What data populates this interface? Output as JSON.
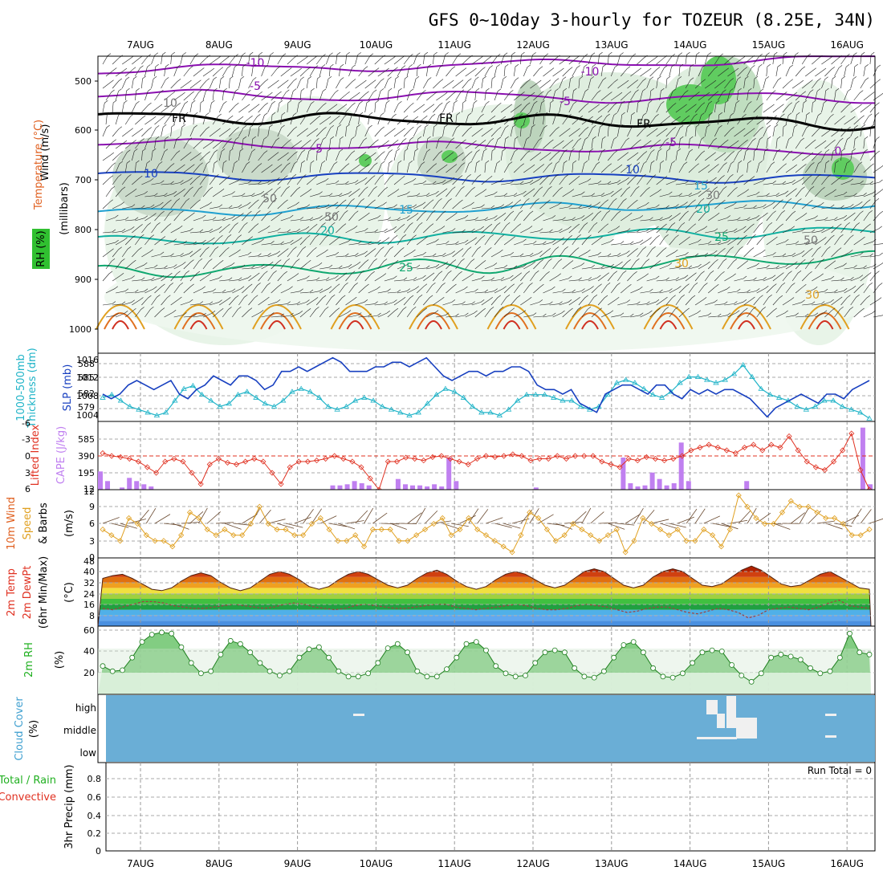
{
  "title": "GFS 0~10day 3-hourly for TOZEUR (8.25E, 34N)",
  "dates": [
    "7AUG",
    "8AUG",
    "9AUG",
    "10AUG",
    "11AUG",
    "12AUG",
    "13AUG",
    "14AUG",
    "15AUG",
    "16AUG"
  ],
  "colors": {
    "rh_green": "#3cc43c",
    "purple": "#8a10b0",
    "blue": "#1840c0",
    "cyan": "#20b4c8",
    "teal": "#10a880",
    "orange": "#e09020",
    "red": "#e03020",
    "cape": "#c080f0",
    "precip_green": "#20b020",
    "cloud": "#6aaed6"
  },
  "panels": {
    "upper": {
      "label_wind": "Wind (m/s)",
      "label_temp": "Temperature (°C)",
      "label_rh": "RH (%)",
      "label_pressure": "(millibars)",
      "label_pressure_chars": [
        "(",
        "m",
        "i",
        "l",
        "l",
        "i",
        "b",
        "a",
        "r",
        "s",
        ")"
      ],
      "yticks": [
        "500",
        "600",
        "700",
        "800",
        "900",
        "1000"
      ],
      "contour_labels": [
        "-10",
        "-10",
        "-5",
        "-5",
        "FR",
        "FR",
        "FR",
        "-5",
        "-5",
        "10",
        "10",
        "15",
        "15",
        "20",
        "20",
        "25",
        "25",
        "30",
        "30",
        "50",
        "50",
        "50",
        "30",
        "10",
        "0"
      ]
    },
    "slp": {
      "label_thick": "1000-500mb",
      "label_thick2": "Thickness (dm)",
      "label_slp": "SLP (mb)",
      "left_ticks": [
        "588",
        "585",
        "582",
        "579"
      ],
      "right_ticks": [
        "1016",
        "1012",
        "1008",
        "1004"
      ]
    },
    "cape": {
      "label_li": "Lifted Index",
      "label_cape": "CAPE (J/kg)",
      "left_ticks": [
        "-6",
        "-3",
        "0",
        "3",
        "6"
      ],
      "right_ticks": [
        "585",
        "390",
        "195",
        "12"
      ]
    },
    "wind10": {
      "label1": "10m Wind",
      "label2": "Speed",
      "label3": "& Barbs",
      "unit": "(m/s)",
      "ticks": [
        "12",
        "9",
        "6",
        "3",
        "0"
      ]
    },
    "temp": {
      "label1": "2m Temp",
      "label2": "2m DewPt",
      "label3": "(6hr Min/Max)",
      "unit": "(°C)",
      "ticks": [
        "48",
        "40",
        "32",
        "24",
        "16",
        "8"
      ]
    },
    "rh2m": {
      "label": "2m RH",
      "unit": "(%)",
      "ticks": [
        "60",
        "40",
        "20"
      ]
    },
    "cloud": {
      "label1": "Cloud Cover",
      "label2": "(%)",
      "levels": [
        "high",
        "middle",
        "low"
      ]
    },
    "precip": {
      "label1": "Total / Rain",
      "label2": "Convective",
      "label3": "3hr Precip (mm)",
      "ticks": [
        "0.8",
        "0.6",
        "0.4",
        "0.2",
        "0"
      ],
      "run_total": "Run Total = 0"
    }
  },
  "chart_data": [
    {
      "type": "line",
      "name": "sea level pressure",
      "unit": "mb",
      "x_step_hours": 3,
      "values": [
        1008,
        1007,
        1008,
        1010,
        1011,
        1010,
        1009,
        1010,
        1011,
        1008,
        1007,
        1009,
        1010,
        1012,
        1011,
        1010,
        1012,
        1012,
        1011,
        1009,
        1010,
        1013,
        1013,
        1014,
        1013,
        1014,
        1015,
        1016,
        1015,
        1013,
        1013,
        1013,
        1014,
        1014,
        1015,
        1015,
        1014,
        1015,
        1016,
        1014,
        1012,
        1011,
        1012,
        1013,
        1013,
        1012,
        1013,
        1013,
        1014,
        1014,
        1013,
        1010,
        1009,
        1009,
        1008,
        1009,
        1006,
        1005,
        1004,
        1008,
        1009,
        1010,
        1010,
        1009,
        1008,
        1010,
        1010,
        1008,
        1007,
        1009,
        1008,
        1009,
        1008,
        1009,
        1009,
        1008,
        1007,
        1005,
        1003,
        1005,
        1006,
        1007,
        1008,
        1007,
        1006,
        1008,
        1008,
        1007,
        1009,
        1010,
        1011
      ],
      "ylim": [
        1002,
        1017
      ]
    },
    {
      "type": "line",
      "name": "1000-500mb thickness",
      "unit": "dm",
      "x_step_hours": 3,
      "values": [
        581.5,
        582,
        581,
        580,
        579.5,
        579,
        578.5,
        579,
        581,
        583,
        583.5,
        582,
        581,
        580,
        580.5,
        582,
        582.5,
        581.5,
        580.5,
        580,
        581,
        582.5,
        583,
        582.5,
        581.5,
        580,
        579.5,
        580,
        581,
        581.5,
        581,
        580,
        579.5,
        579,
        578.5,
        579,
        580.5,
        582,
        583,
        582.5,
        581.5,
        580,
        579,
        579,
        578.5,
        579.5,
        581,
        582,
        582,
        582,
        581.5,
        581,
        581,
        580,
        579.5,
        580,
        582,
        584,
        584.5,
        584,
        583,
        582,
        581.5,
        582.5,
        584,
        585,
        585,
        584.5,
        584,
        584.5,
        585.5,
        587,
        585,
        583,
        582,
        581.5,
        581,
        580,
        579.5,
        580,
        581,
        581,
        580,
        579.5,
        579,
        578
      ],
      "ylim": [
        577.5,
        589
      ]
    },
    {
      "type": "line",
      "name": "lifted index",
      "unit": "",
      "x_step_hours": 3,
      "values": [
        -0.5,
        0,
        0.2,
        0.5,
        1,
        2,
        3,
        1,
        0.5,
        1,
        3,
        5,
        1.5,
        0.5,
        1.2,
        1.5,
        1,
        0.5,
        1,
        3,
        5,
        2,
        1,
        1,
        0.8,
        0.5,
        0,
        0.5,
        1,
        2,
        4,
        6,
        1,
        1,
        0.3,
        0.5,
        0.8,
        0.2,
        0,
        0.5,
        1,
        1.5,
        0.5,
        0,
        0.2,
        0,
        -0.3,
        0,
        0.8,
        0.5,
        0.5,
        0,
        0.5,
        0,
        0,
        0,
        1,
        1.5,
        2,
        0.5,
        0.8,
        0.2,
        0.5,
        0.8,
        0.5,
        0,
        -1,
        -1.5,
        -2,
        -1.5,
        -1,
        -0.5,
        -1.5,
        -2,
        -1,
        -2,
        -1.5,
        -3.5,
        -1,
        1,
        2,
        2.5,
        1,
        -1,
        -4,
        2.5,
        6
      ]
    },
    {
      "type": "bar",
      "name": "CAPE",
      "unit": "J/kg",
      "x_step_hours": 3,
      "values": [
        170,
        80,
        0,
        20,
        110,
        80,
        50,
        30,
        0,
        0,
        0,
        0,
        0,
        0,
        0,
        0,
        0,
        0,
        0,
        0,
        0,
        0,
        0,
        0,
        0,
        0,
        0,
        0,
        0,
        0,
        0,
        0,
        40,
        40,
        50,
        80,
        60,
        40,
        0,
        0,
        0,
        100,
        50,
        40,
        40,
        30,
        50,
        30,
        300,
        80,
        0,
        0,
        0,
        0,
        0,
        0,
        0,
        0,
        0,
        0,
        20,
        0,
        0,
        0,
        0,
        0,
        0,
        0,
        0,
        0,
        0,
        0,
        300,
        60,
        30,
        40,
        160,
        100,
        40,
        60,
        440,
        80,
        0,
        0,
        0,
        0,
        0,
        0,
        0,
        80,
        0,
        0,
        0,
        0,
        0,
        0,
        0,
        0,
        0,
        0,
        0,
        0,
        0,
        0,
        0,
        580,
        50
      ]
    },
    {
      "type": "line",
      "name": "10m wind speed",
      "unit": "m/s",
      "x_step_hours": 3,
      "values": [
        5,
        4,
        3,
        7,
        6,
        4,
        3,
        3,
        2,
        4,
        8,
        7,
        5,
        4,
        5,
        4,
        4,
        6,
        9,
        6,
        5,
        5,
        4,
        4,
        6,
        7,
        5,
        3,
        3,
        4,
        2,
        5,
        5,
        5,
        3,
        3,
        4,
        5,
        6,
        7,
        4,
        5,
        7,
        5,
        4,
        3,
        2,
        1,
        4,
        8,
        7,
        5,
        3,
        4,
        6,
        5,
        4,
        3,
        4,
        5,
        1,
        3,
        7,
        6,
        5,
        4,
        5,
        3,
        3,
        5,
        4,
        2,
        5,
        11,
        9,
        7,
        6,
        6,
        8,
        10,
        9,
        9,
        8,
        7,
        7,
        6,
        4,
        4,
        5
      ]
    },
    {
      "type": "area",
      "name": "2m temperature",
      "unit": "°C",
      "x_step_hours": 3,
      "values": [
        35,
        37,
        38,
        35,
        31,
        27,
        26,
        28,
        33,
        37,
        39,
        37,
        32,
        28,
        26,
        28,
        33,
        38,
        40,
        38,
        34,
        29,
        27,
        29,
        34,
        38,
        40,
        38,
        34,
        30,
        28,
        30,
        35,
        39,
        41,
        38,
        33,
        29,
        27,
        29,
        34,
        38,
        40,
        38,
        34,
        30,
        28,
        30,
        35,
        40,
        42,
        40,
        35,
        30,
        28,
        30,
        36,
        40,
        42,
        40,
        35,
        30,
        29,
        31,
        36,
        41,
        44,
        41,
        36,
        31,
        29,
        30,
        34,
        38,
        40,
        36,
        32,
        28,
        27
      ],
      "ylim": [
        0,
        50
      ]
    },
    {
      "type": "line",
      "name": "2m dew point",
      "unit": "°C",
      "x_step_hours": 3,
      "values": [
        13,
        12,
        14,
        16,
        18,
        18,
        17,
        15,
        14,
        13,
        13,
        14,
        15,
        16,
        15,
        14,
        13,
        14,
        16,
        17,
        16,
        14,
        13,
        12,
        13,
        15,
        16,
        15,
        14,
        13,
        13,
        14,
        15,
        16,
        16,
        14,
        13,
        12,
        13,
        14,
        15,
        16,
        15,
        13,
        12,
        12,
        13,
        15,
        16,
        15,
        14,
        12,
        10,
        11,
        13,
        14,
        14,
        12,
        10,
        9,
        11,
        13,
        12,
        10,
        6,
        8,
        12,
        13,
        14,
        13,
        12,
        14,
        17,
        19,
        15,
        14,
        13
      ]
    },
    {
      "type": "area",
      "name": "2m relative humidity",
      "unit": "%",
      "x_step_hours": 3,
      "values": [
        27,
        22,
        23,
        35,
        50,
        57,
        59,
        58,
        45,
        30,
        20,
        22,
        38,
        51,
        48,
        40,
        30,
        22,
        18,
        22,
        35,
        43,
        45,
        35,
        22,
        17,
        17,
        20,
        30,
        44,
        48,
        40,
        22,
        17,
        17,
        24,
        35,
        48,
        50,
        42,
        27,
        20,
        17,
        18,
        30,
        40,
        42,
        40,
        25,
        17,
        16,
        22,
        35,
        47,
        50,
        40,
        25,
        17,
        16,
        20,
        30,
        40,
        42,
        41,
        28,
        18,
        12,
        20,
        35,
        38,
        36,
        33,
        25,
        20,
        22,
        35,
        58,
        40,
        38
      ],
      "ylim": [
        0,
        65
      ]
    },
    {
      "type": "bar",
      "name": "3hr precip",
      "unit": "mm",
      "values": [],
      "ylim": [
        0,
        0.9
      ]
    }
  ]
}
